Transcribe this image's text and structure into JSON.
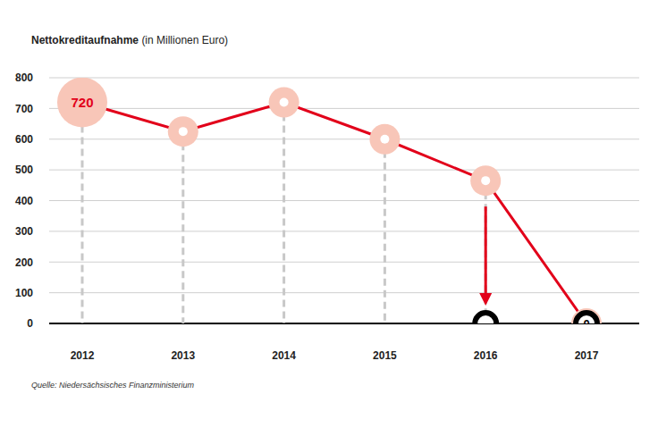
{
  "chart_data": {
    "type": "line",
    "title": "Nettokreditaufnahme",
    "subtitle": "(in Millionen Euro)",
    "source": "Quelle: Niedersächsisches Finanzministerium",
    "categories": [
      "2012",
      "2013",
      "2014",
      "2015",
      "2016",
      "2017"
    ],
    "series": [
      {
        "color": "#e2001a",
        "marker": "circle",
        "line_style": "solid",
        "values": [
          720,
          625,
          720,
          600,
          465,
          0
        ],
        "value_labels": [
          "720",
          null,
          null,
          null,
          null,
          null
        ]
      },
      {
        "color": "#000000",
        "marker": "ring",
        "line_style": "none",
        "values": [
          null,
          null,
          null,
          null,
          0,
          0
        ],
        "value_labels": [
          null,
          null,
          null,
          null,
          null,
          "0"
        ]
      }
    ],
    "ylim": [
      0,
      800
    ],
    "yticks": [
      0,
      100,
      200,
      300,
      400,
      500,
      600,
      700,
      800
    ],
    "grid": true,
    "data_labels": true
  }
}
